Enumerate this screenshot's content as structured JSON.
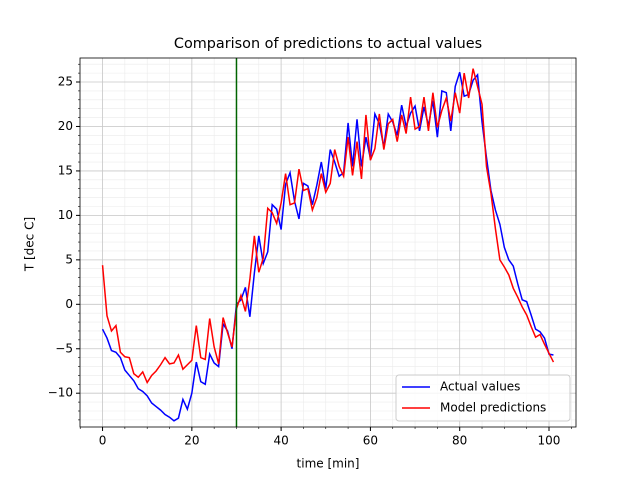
{
  "chart_data": {
    "type": "line",
    "title": "Comparison of predictions to actual values",
    "x_label": "time [min]",
    "y_label": "T [dec C]",
    "x": [
      0,
      1,
      2,
      3,
      4,
      5,
      6,
      7,
      8,
      9,
      10,
      11,
      12,
      13,
      14,
      15,
      16,
      17,
      18,
      19,
      20,
      21,
      22,
      23,
      24,
      25,
      26,
      27,
      28,
      29,
      30,
      31,
      32,
      33,
      34,
      35,
      36,
      37,
      38,
      39,
      40,
      41,
      42,
      43,
      44,
      45,
      46,
      47,
      48,
      49,
      50,
      51,
      52,
      53,
      54,
      55,
      56,
      57,
      58,
      59,
      60,
      61,
      62,
      63,
      64,
      65,
      66,
      67,
      68,
      69,
      70,
      71,
      72,
      73,
      74,
      75,
      76,
      77,
      78,
      79,
      80,
      81,
      82,
      83,
      84,
      85,
      86,
      87,
      88,
      89,
      90,
      91,
      92,
      93,
      94,
      95,
      96,
      97,
      98,
      99,
      100,
      101
    ],
    "series": [
      {
        "name": "Actual values",
        "color": "#0000ff",
        "values": [
          -2.8,
          -3.8,
          -5.2,
          -5.4,
          -6,
          -7.4,
          -8,
          -8.6,
          -9.5,
          -9.8,
          -10.3,
          -11.1,
          -11.5,
          -11.9,
          -12.4,
          -12.7,
          -13.1,
          -12.8,
          -10.7,
          -11.8,
          -10,
          -6.5,
          -8.7,
          -9,
          -5.6,
          -6.6,
          -7,
          -2.2,
          -3,
          -5,
          0,
          0.5,
          1.9,
          -1.4,
          3.5,
          7.7,
          4.6,
          5.9,
          11.2,
          10.7,
          8.4,
          13.5,
          14.8,
          11.6,
          9.6,
          13.6,
          13.3,
          11.2,
          13.4,
          16,
          13,
          17.4,
          16,
          14.4,
          14.8,
          20.4,
          15.5,
          20.8,
          15.5,
          18.8,
          16.4,
          21.4,
          20.3,
          17.7,
          21.4,
          20.5,
          19,
          22.4,
          20,
          21.5,
          22.3,
          19.5,
          22.2,
          20.1,
          22.9,
          18.8,
          24,
          23.8,
          19.5,
          24.5,
          26.1,
          23.4,
          23.6,
          25.2,
          25.8,
          20.5,
          16.5,
          12.8,
          10.6,
          9,
          6.4,
          5,
          4.3,
          2.3,
          0.5,
          0.3,
          -1.2,
          -2.8,
          -3.1,
          -3.8,
          -5.6,
          -5.7
        ]
      },
      {
        "name": "Model predictions",
        "color": "#ff0000",
        "values": [
          4.4,
          -1.3,
          -3,
          -2.4,
          -5.4,
          -5.9,
          -6,
          -7.8,
          -8.2,
          -7.6,
          -8.8,
          -8,
          -7.5,
          -6.8,
          -6,
          -6.7,
          -6.6,
          -5.7,
          -7.3,
          -6.8,
          -6.3,
          -2.4,
          -6,
          -6.2,
          -1.6,
          -4.8,
          -6.7,
          -1.5,
          -3.2,
          -4.8,
          -0.5,
          1,
          -0.8,
          2.8,
          7.7,
          3.6,
          5.2,
          10.8,
          10.3,
          9.1,
          11.4,
          14.7,
          11.2,
          11.4,
          15.2,
          12.8,
          13,
          10.6,
          12,
          14.7,
          12.6,
          13.6,
          17.4,
          15.5,
          14.4,
          18.8,
          14.5,
          18.3,
          14.1,
          21.3,
          16.2,
          17.5,
          21.4,
          17.4,
          20.3,
          20.8,
          18.3,
          21.3,
          19.2,
          23.3,
          19.7,
          20,
          23.3,
          19.5,
          23.8,
          19.9,
          21.8,
          23.2,
          20.6,
          23.8,
          21.5,
          26,
          23.2,
          26.5,
          24.5,
          22.5,
          15.5,
          12.5,
          8.5,
          5,
          4.2,
          3.3,
          1.8,
          0.8,
          -0.3,
          -1.2,
          -2.5,
          -3.7,
          -3.4,
          -4.5,
          -5.5,
          -6.5
        ]
      }
    ],
    "xlim": [
      -5.05,
      106.05
    ],
    "ylim": [
      -13.8,
      27.7
    ],
    "xticks": [
      0,
      20,
      40,
      60,
      80,
      100
    ],
    "yticks": [
      {
        "value": -10,
        "label": "−10"
      },
      {
        "value": -5,
        "label": "−5"
      },
      0,
      5,
      10,
      15,
      20,
      25
    ],
    "vline": {
      "x": 30,
      "color": "#006400"
    },
    "grid": true,
    "minor_grid": true,
    "legend": "lower right"
  }
}
